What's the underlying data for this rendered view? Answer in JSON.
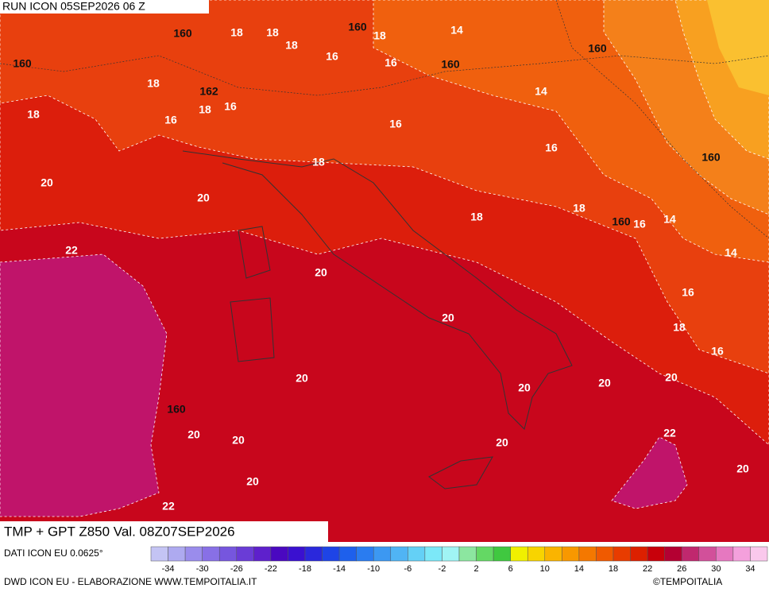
{
  "header": {
    "run": "RUN ICON 05SEP2026 06 Z",
    "title": "TMP + GPT Z850 Val. 08Z07SEP2026"
  },
  "map": {
    "geopotential_labels": [
      "160",
      "160",
      "160",
      "160",
      "160",
      "162",
      "160",
      "160",
      "160"
    ],
    "temperature_labels": [
      "18",
      "18",
      "18",
      "18",
      "14",
      "16",
      "16",
      "18",
      "18",
      "18",
      "16",
      "16",
      "14",
      "16",
      "16",
      "18",
      "20",
      "20",
      "18",
      "18",
      "16",
      "14",
      "14",
      "22",
      "20",
      "16",
      "20",
      "18",
      "16",
      "20",
      "20",
      "20",
      "20",
      "20",
      "20",
      "20",
      "22",
      "20",
      "20",
      "22"
    ]
  },
  "legend": {
    "colors": [
      "#c4c4f4",
      "#aeaaf0",
      "#9a8cec",
      "#8870e6",
      "#7656de",
      "#6a3cd6",
      "#5e20cc",
      "#4a08c0",
      "#3a10d0",
      "#2a28dc",
      "#1e44e6",
      "#1e60ec",
      "#2a7cf0",
      "#3c98f2",
      "#50b4f4",
      "#64d0f6",
      "#7ce8f8",
      "#a0f4f4",
      "#8ce6a0",
      "#64d864",
      "#40c840",
      "#f0f000",
      "#f8d400",
      "#fab400",
      "#f89800",
      "#f47800",
      "#f05a00",
      "#e83c00",
      "#dc2000",
      "#c8000a",
      "#b40032",
      "#c0286e",
      "#d2509a",
      "#e678c0",
      "#f4a0dc",
      "#fac8ec"
    ],
    "ticks": [
      -34,
      -30,
      -26,
      -22,
      -18,
      -14,
      -10,
      -6,
      -2,
      2,
      6,
      10,
      14,
      18,
      22,
      26,
      30,
      34
    ]
  },
  "footer": {
    "source": "DATI ICON EU 0.0625°",
    "credit": "DWD ICON EU - ELABORAZIONE WWW.TEMPOITALIA.IT",
    "copyright": "©TEMPOITALIA"
  }
}
